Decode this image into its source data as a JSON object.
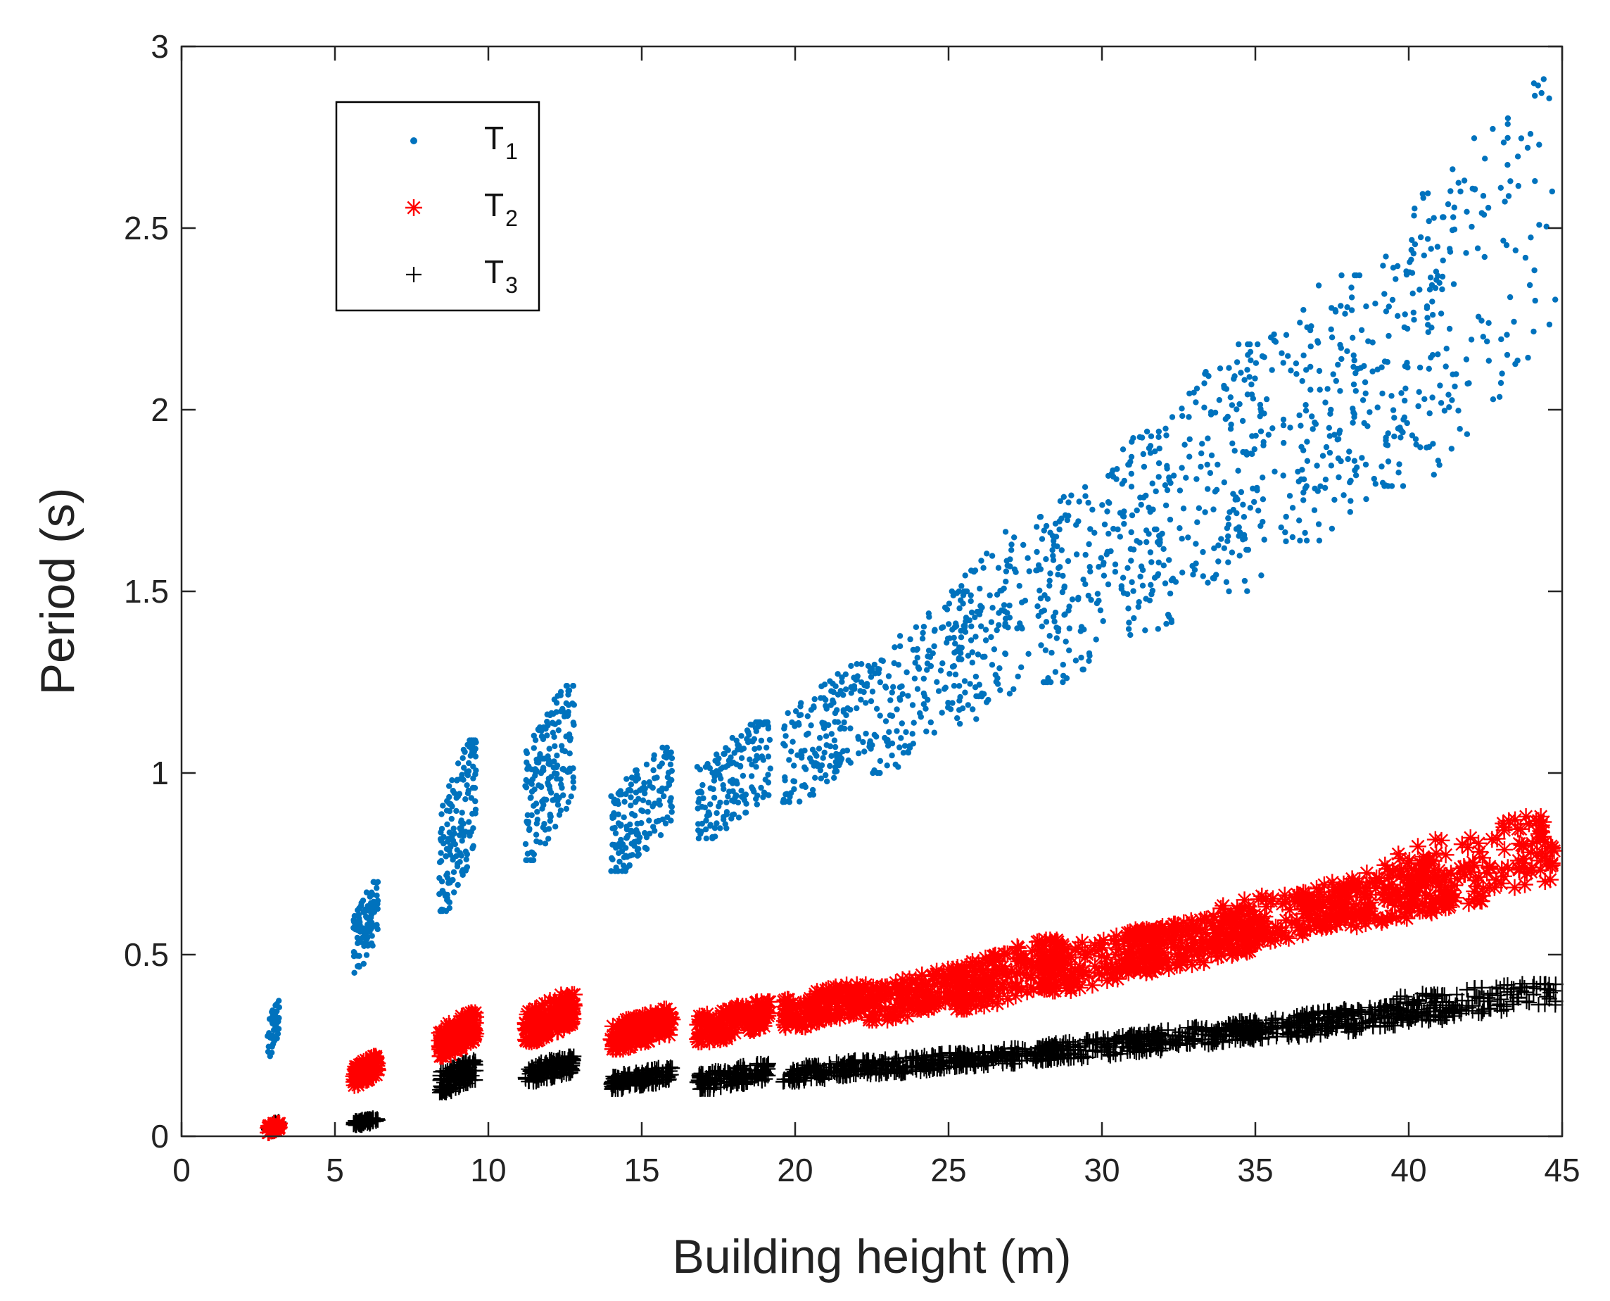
{
  "chart_data": {
    "type": "scatter",
    "title": "",
    "xlabel": "Building height (m)",
    "ylabel": "Period (s)",
    "xlim": [
      0,
      45
    ],
    "ylim": [
      0,
      3
    ],
    "xticks": [
      0,
      5,
      10,
      15,
      20,
      25,
      30,
      35,
      40,
      45
    ],
    "yticks": [
      0,
      0.5,
      1,
      1.5,
      2,
      2.5,
      3
    ],
    "ytick_labels": [
      "0",
      "0.5",
      "1",
      "1.5",
      "2",
      "2.5",
      "3"
    ],
    "grid": false,
    "legend_position": "top-left",
    "series": [
      {
        "name": "T",
        "subscript": "1",
        "marker": "dot",
        "color": "#0072BD",
        "clusters": [
          {
            "x": [
              2.8,
              3.2
            ],
            "y": [
              0.22,
              0.38
            ],
            "n": 45
          },
          {
            "x": [
              5.6,
              6.4
            ],
            "y": [
              0.45,
              0.7
            ],
            "n": 110
          },
          {
            "x": [
              8.4,
              9.6
            ],
            "y": [
              0.62,
              1.09
            ],
            "n": 160
          },
          {
            "x": [
              11.2,
              12.8
            ],
            "y": [
              0.76,
              1.24
            ],
            "n": 190
          },
          {
            "x": [
              14.0,
              16.0
            ],
            "y": [
              0.73,
              1.07
            ],
            "n": 170
          },
          {
            "x": [
              16.8,
              19.2
            ],
            "y": [
              0.82,
              1.14
            ],
            "n": 170
          },
          {
            "x": [
              19.6,
              22.4
            ],
            "y": [
              0.92,
              1.3
            ],
            "n": 170
          },
          {
            "x": [
              22.4,
              25.6
            ],
            "y": [
              1.0,
              1.5
            ],
            "n": 170
          },
          {
            "x": [
              25.2,
              28.8
            ],
            "y": [
              1.12,
              1.76
            ],
            "n": 160
          },
          {
            "x": [
              28.0,
              32.0
            ],
            "y": [
              1.25,
              1.94
            ],
            "n": 160
          },
          {
            "x": [
              30.8,
              35.2
            ],
            "y": [
              1.38,
              2.18
            ],
            "n": 160
          },
          {
            "x": [
              33.6,
              38.4
            ],
            "y": [
              1.5,
              2.37
            ],
            "n": 150
          },
          {
            "x": [
              36.4,
              41.6
            ],
            "y": [
              1.64,
              2.53
            ],
            "n": 150
          },
          {
            "x": [
              39.2,
              44.8
            ],
            "y": [
              1.79,
              2.91
            ],
            "n": 150
          }
        ]
      },
      {
        "name": "T",
        "subscript": "2",
        "marker": "asterisk",
        "color": "#FF0000",
        "clusters": [
          {
            "x": [
              2.8,
              3.2
            ],
            "y": [
              0.01,
              0.04
            ],
            "n": 30
          },
          {
            "x": [
              5.6,
              6.4
            ],
            "y": [
              0.14,
              0.22
            ],
            "n": 90
          },
          {
            "x": [
              8.4,
              9.6
            ],
            "y": [
              0.22,
              0.34
            ],
            "n": 130
          },
          {
            "x": [
              11.2,
              12.8
            ],
            "y": [
              0.26,
              0.39
            ],
            "n": 150
          },
          {
            "x": [
              14.0,
              16.0
            ],
            "y": [
              0.24,
              0.35
            ],
            "n": 150
          },
          {
            "x": [
              16.8,
              19.2
            ],
            "y": [
              0.26,
              0.37
            ],
            "n": 150
          },
          {
            "x": [
              19.6,
              22.4
            ],
            "y": [
              0.3,
              0.42
            ],
            "n": 150
          },
          {
            "x": [
              22.4,
              25.6
            ],
            "y": [
              0.32,
              0.46
            ],
            "n": 150
          },
          {
            "x": [
              25.2,
              28.8
            ],
            "y": [
              0.35,
              0.54
            ],
            "n": 150
          },
          {
            "x": [
              28.0,
              32.0
            ],
            "y": [
              0.4,
              0.57
            ],
            "n": 150
          },
          {
            "x": [
              30.8,
              35.2
            ],
            "y": [
              0.45,
              0.62
            ],
            "n": 150
          },
          {
            "x": [
              33.6,
              38.4
            ],
            "y": [
              0.52,
              0.7
            ],
            "n": 150
          },
          {
            "x": [
              36.4,
              41.6
            ],
            "y": [
              0.56,
              0.76
            ],
            "n": 150
          },
          {
            "x": [
              39.2,
              44.8
            ],
            "y": [
              0.6,
              0.88
            ],
            "n": 150
          }
        ]
      },
      {
        "name": "T",
        "subscript": "3",
        "marker": "plus",
        "color": "#000000",
        "clusters": [
          {
            "x": [
              2.8,
              3.2
            ],
            "y": [
              0.01,
              0.04
            ],
            "n": 30
          },
          {
            "x": [
              5.6,
              6.4
            ],
            "y": [
              0.03,
              0.05
            ],
            "n": 60
          },
          {
            "x": [
              8.4,
              9.6
            ],
            "y": [
              0.12,
              0.21
            ],
            "n": 120
          },
          {
            "x": [
              11.2,
              12.8
            ],
            "y": [
              0.15,
              0.22
            ],
            "n": 140
          },
          {
            "x": [
              14.0,
              16.0
            ],
            "y": [
              0.13,
              0.19
            ],
            "n": 140
          },
          {
            "x": [
              16.8,
              19.2
            ],
            "y": [
              0.13,
              0.2
            ],
            "n": 140
          },
          {
            "x": [
              19.6,
              22.4
            ],
            "y": [
              0.15,
              0.21
            ],
            "n": 140
          },
          {
            "x": [
              22.4,
              25.6
            ],
            "y": [
              0.17,
              0.23
            ],
            "n": 140
          },
          {
            "x": [
              25.2,
              28.8
            ],
            "y": [
              0.19,
              0.25
            ],
            "n": 140
          },
          {
            "x": [
              28.0,
              32.0
            ],
            "y": [
              0.21,
              0.28
            ],
            "n": 140
          },
          {
            "x": [
              30.8,
              35.2
            ],
            "y": [
              0.24,
              0.31
            ],
            "n": 140
          },
          {
            "x": [
              33.6,
              38.4
            ],
            "y": [
              0.26,
              0.34
            ],
            "n": 140
          },
          {
            "x": [
              36.4,
              41.6
            ],
            "y": [
              0.29,
              0.37
            ],
            "n": 140
          },
          {
            "x": [
              39.2,
              44.8
            ],
            "y": [
              0.32,
              0.42
            ],
            "n": 140
          }
        ]
      }
    ]
  }
}
